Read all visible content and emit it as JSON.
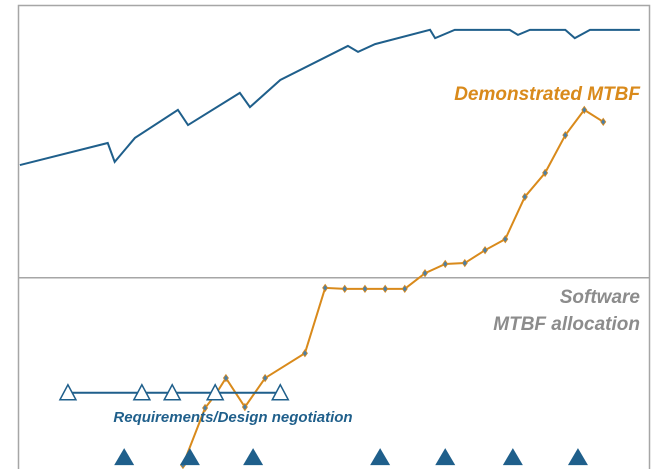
{
  "chart_data": {
    "type": "line",
    "xlim": [
      0,
      100
    ],
    "ylim": [
      0,
      100
    ],
    "reference_line": {
      "name": [
        "Software",
        "MTBF allocation"
      ],
      "value": 40.7,
      "color": "#a6a6a6"
    },
    "series": [
      {
        "color": "#1f5f8b",
        "marker": "none",
        "x": [
          0.3,
          14.2,
          15.3,
          18.5,
          25.3,
          26.9,
          35.1,
          36.7,
          41.5,
          52.2,
          53.8,
          56.5,
          65.2,
          66.0,
          69.1,
          77.8,
          79.1,
          81.0,
          86.6,
          88.1,
          90.5,
          98.4
        ],
        "values": [
          65.2,
          70.0,
          65.9,
          71.1,
          77.2,
          73.9,
          80.9,
          77.8,
          83.7,
          91.1,
          89.8,
          91.5,
          94.6,
          92.8,
          94.6,
          94.6,
          93.5,
          94.6,
          94.6,
          92.8,
          94.6,
          94.6
        ]
      },
      {
        "name": "Demonstrated MTBF",
        "color": "#d98a1b",
        "marker": "diamond",
        "x": [
          26.1,
          29.6,
          31.2,
          32.9,
          35.9,
          39.1,
          45.4,
          48.6,
          51.7,
          54.9,
          58.1,
          61.2,
          64.4,
          67.6,
          70.7,
          73.9,
          77.1,
          80.2,
          83.4,
          86.6,
          89.6,
          92.6
        ],
        "values": [
          0,
          12.4,
          15.2,
          18.9,
          12.6,
          18.9,
          24.3,
          38.5,
          38.3,
          38.3,
          38.3,
          38.3,
          41.7,
          43.7,
          43.9,
          46.7,
          49.1,
          58.3,
          63.5,
          71.7,
          77.2,
          74.6
        ]
      },
      {
        "name": "Requirements/Design negotiation",
        "color": "#1f5f8b",
        "marker": "triangle-open",
        "x": [
          7.9,
          19.6,
          24.4,
          31.2,
          41.5
        ],
        "values": [
          15.7,
          15.7,
          15.7,
          15.7,
          15.7
        ]
      },
      {
        "color": "#1f5f8b",
        "marker": "triangle",
        "line": false,
        "x": [
          16.8,
          27.2,
          37.2,
          57.3,
          67.6,
          78.3,
          88.6
        ],
        "values": [
          1.5,
          1.5,
          1.5,
          1.5,
          1.5,
          1.5,
          1.5
        ]
      }
    ]
  }
}
